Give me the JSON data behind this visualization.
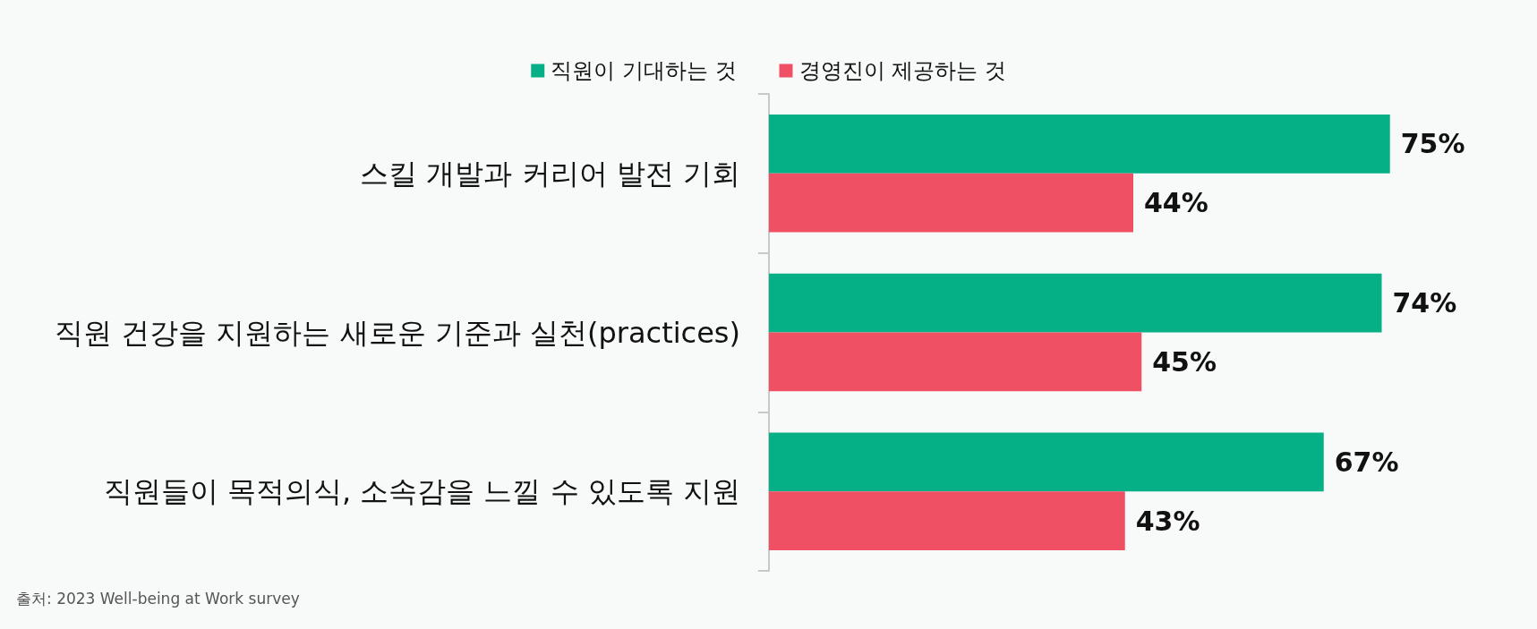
{
  "chart_data": {
    "type": "bar",
    "orientation": "horizontal",
    "categories": [
      "스킬 개발과 커리어 발전 기회",
      "직원 건강을 지원하는 새로운 기준과 실천(practices)",
      "직원들이 목적의식, 소속감을 느낄 수 있도록 지원"
    ],
    "series": [
      {
        "name": "직원이 기대하는 것",
        "color": "#06b086",
        "values": [
          75,
          74,
          67
        ],
        "value_labels": [
          "75%",
          "74%",
          "67%"
        ]
      },
      {
        "name": "경영진이 제공하는 것",
        "color": "#f05063",
        "values": [
          44,
          45,
          43
        ],
        "value_labels": [
          "44%",
          "45%",
          "43%"
        ]
      }
    ],
    "legend": "top",
    "tick_labels": "y",
    "annotations": [
      "출처: 2023 Well-being at Work survey"
    ]
  }
}
